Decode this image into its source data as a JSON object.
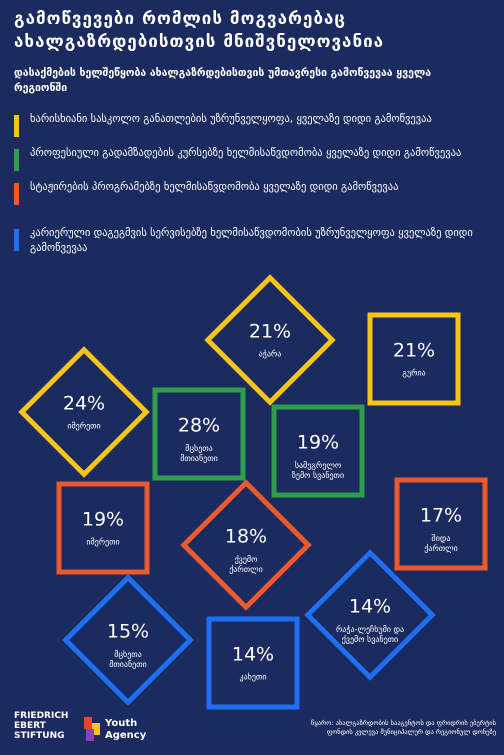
{
  "header": {
    "title": "გამოწვევები რომლის მოგვარებაც ახალგაზრდებისთვის მნიშვნელოვანია",
    "subtitle": "დასაქმების ხელშეწყობა ახალგაზრდებისთვის უმთავრესი გამოწვევაა ყველა რეგიონში"
  },
  "legend": [
    {
      "color": "#f5c518",
      "label": "ხარისხიანი სასკოლო განათლების უზრუნველყოფა, ყველაზე დიდი გამოწვევაა"
    },
    {
      "color": "#2e9e4a",
      "label": "პროფესიული გადამზადების კურსებზე ხელმისაწვდომობა ყველაზე დიდი გამოწვევაა"
    },
    {
      "color": "#ea5a2c",
      "label": "სტაჟირების პროგრამებზე ხელმისაწვდომობა ყველაზე დიდი გამოწვევაა"
    },
    {
      "color": "#1f6ff2",
      "label": "კარიერული დაგეგმვის სერვისებზე ხელმისაწვდომობის უზრუნველყოფა ყველაზე დიდი გამოწვევაა"
    }
  ],
  "regions": [
    {
      "value": "21%",
      "label": "აჭარა",
      "group": 0,
      "shape": "diamond"
    },
    {
      "value": "21%",
      "label": "გურია",
      "group": 0,
      "shape": "square"
    },
    {
      "value": "24%",
      "label": "იმერეთი",
      "group": 0,
      "shape": "diamond"
    },
    {
      "value": "28%",
      "label": "მცხეთა მთიანეთი",
      "group": 1,
      "shape": "square"
    },
    {
      "value": "19%",
      "label": "სამეგრელო ზემო სვანეთი",
      "group": 1,
      "shape": "square"
    },
    {
      "value": "19%",
      "label": "იმერეთი",
      "group": 2,
      "shape": "square"
    },
    {
      "value": "18%",
      "label": "ქვემო ქართლი",
      "group": 2,
      "shape": "diamond"
    },
    {
      "value": "17%",
      "label": "შიდა ქართლი",
      "group": 2,
      "shape": "square"
    },
    {
      "value": "15%",
      "label": "მცხეთა მთიანეთი",
      "group": 3,
      "shape": "diamond"
    },
    {
      "value": "14%",
      "label": "კახეთი",
      "group": 3,
      "shape": "square"
    },
    {
      "value": "14%",
      "label": "რაჭა-ლეჩხუმი და ქვემო სვანეთი",
      "group": 3,
      "shape": "diamond"
    }
  ],
  "footer": {
    "logo1": "FRIEDRICH EBERT STIFTUNG",
    "logo2": "Youth Agency",
    "source": "წყარო: ახალგაზრდობის სააგენტოს და ფრიდრიხ ებერტის ფონდის კვლევა მუნიციპალურ და რეგიონულ დონეზე"
  }
}
